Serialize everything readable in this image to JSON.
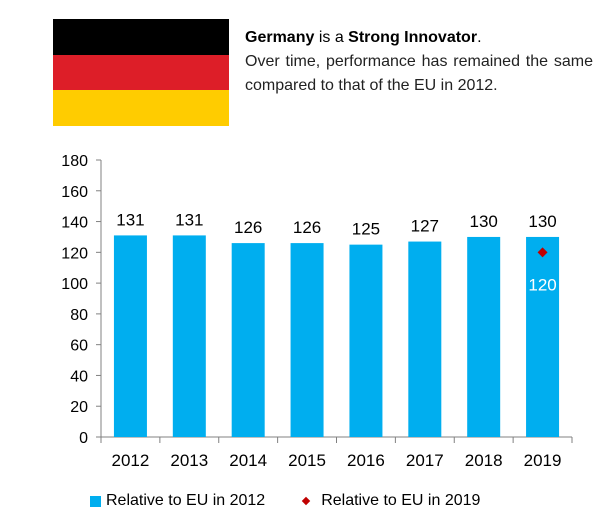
{
  "flag": {
    "country": "Germany",
    "colors": [
      "#000000",
      "#dd1e28",
      "#ffcc00"
    ]
  },
  "heading": {
    "country": "Germany",
    "connector": " is a ",
    "category": "Strong Innovator",
    "period": ".",
    "description": "Over time, performance has remained the same compared to that of the EU in 2012."
  },
  "chart_data": {
    "type": "bar",
    "title": "",
    "xlabel": "",
    "ylabel": "",
    "categories": [
      "2012",
      "2013",
      "2014",
      "2015",
      "2016",
      "2017",
      "2018",
      "2019"
    ],
    "ylim": [
      0,
      180
    ],
    "yticks": [
      0,
      20,
      40,
      60,
      80,
      100,
      120,
      140,
      160,
      180
    ],
    "grid": false,
    "legend_position": "bottom",
    "series": [
      {
        "name": "Relative to EU in 2012",
        "type": "bar",
        "color": "#00aeef",
        "values": [
          131,
          131,
          126,
          126,
          125,
          127,
          130,
          130
        ]
      },
      {
        "name": "Relative to EU in 2019",
        "type": "marker",
        "color": "#c00000",
        "values": [
          null,
          null,
          null,
          null,
          null,
          null,
          null,
          120
        ]
      }
    ]
  }
}
